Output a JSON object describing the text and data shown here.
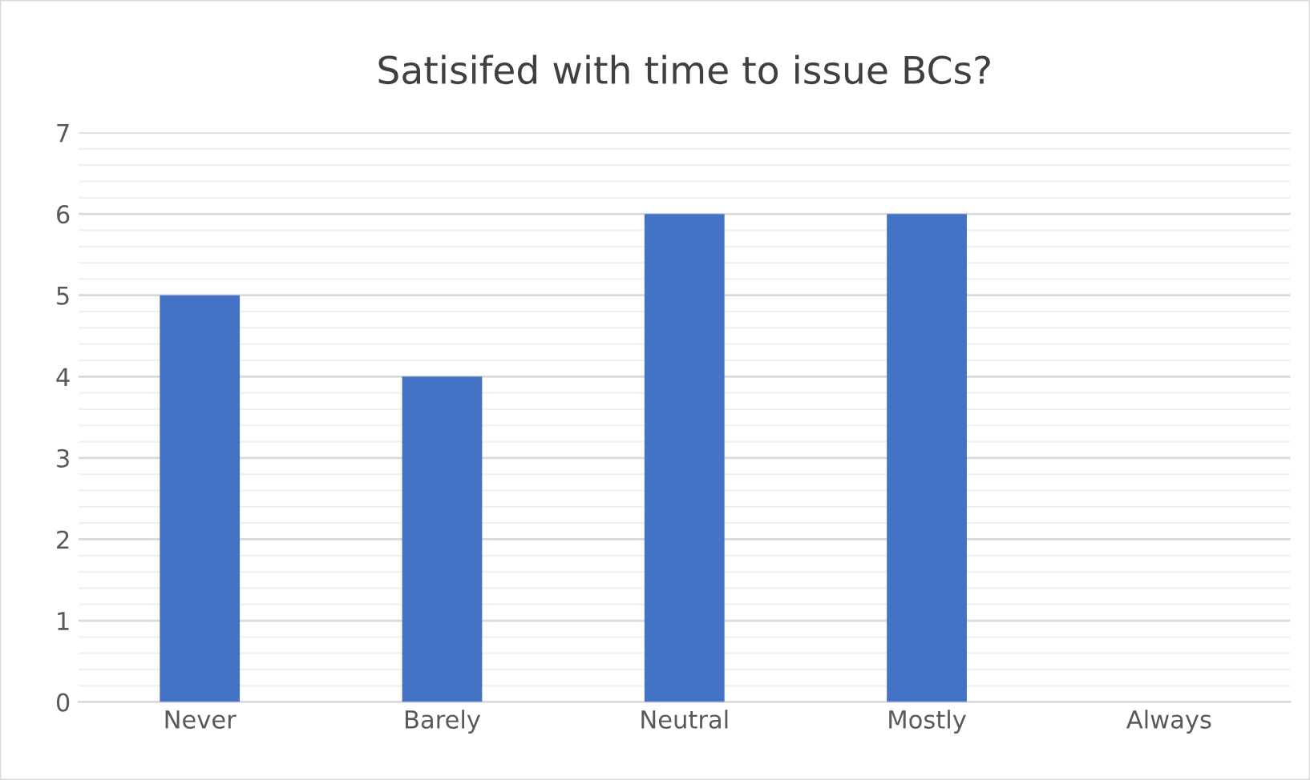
{
  "chart_data": {
    "type": "bar",
    "title": "Satisifed with time to issue BCs?",
    "categories": [
      "Never",
      "Barely",
      "Neutral",
      "Mostly",
      "Always"
    ],
    "values": [
      5,
      4,
      6,
      6,
      0
    ],
    "color": "#4472c4",
    "ylim": [
      0,
      7
    ],
    "yticks": [
      0,
      1,
      2,
      3,
      4,
      5,
      6,
      7
    ],
    "grid": "y",
    "legend": false
  }
}
